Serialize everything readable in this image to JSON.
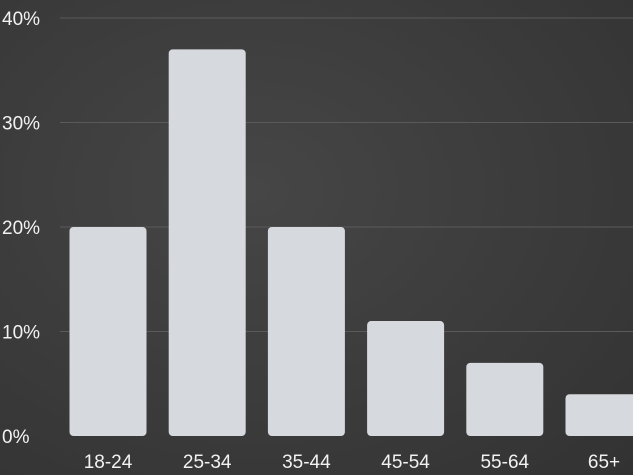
{
  "chart_data": {
    "type": "bar",
    "categories": [
      "18-24",
      "25-34",
      "35-44",
      "45-54",
      "55-64",
      "65+"
    ],
    "values": [
      20,
      37,
      20,
      11,
      7,
      4
    ],
    "ylim": [
      0,
      40
    ],
    "yticks": [
      0,
      10,
      20,
      30,
      40
    ],
    "ytick_labels": [
      "0%",
      "10%",
      "20%",
      "30%",
      "40%"
    ],
    "grid": true,
    "colors": {
      "background": "#3c3c3c",
      "bar": "#d6d9de",
      "text": "#f2f2f2",
      "grid": "#5a5a5a"
    }
  }
}
